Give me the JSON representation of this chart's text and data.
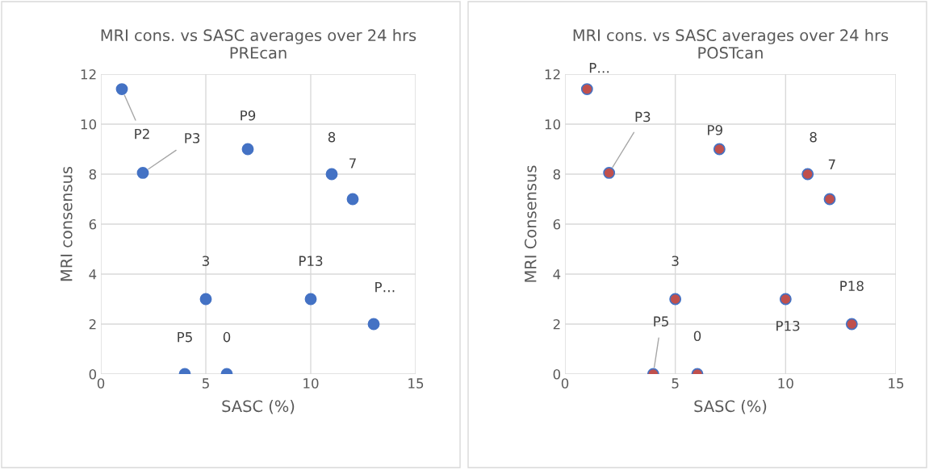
{
  "chart_data": [
    {
      "type": "scatter",
      "title": "MRI cons. vs SASC averages over 24 hrs\nPREcan",
      "xlabel": "SASC (%)",
      "ylabel": "MRI consensus",
      "x": [
        1,
        2,
        7,
        11,
        12,
        5,
        10,
        13,
        4,
        6
      ],
      "series": [
        {
          "color": "#4472c4",
          "values": [
            11.4,
            8.05,
            9,
            8,
            7,
            3,
            3,
            2,
            0,
            0
          ]
        }
      ],
      "annotations": [
        {
          "text": "P2",
          "x": 1,
          "y": 11.4
        },
        {
          "text": "P3",
          "x": 2,
          "y": 8.05
        },
        {
          "text": "P9",
          "x": 7,
          "y": 9
        },
        {
          "text": "8",
          "x": 11,
          "y": 8
        },
        {
          "text": "7",
          "x": 12,
          "y": 7
        },
        {
          "text": "3",
          "x": 5,
          "y": 3
        },
        {
          "text": "P13",
          "x": 10,
          "y": 3
        },
        {
          "text": "P…",
          "x": 13,
          "y": 2
        },
        {
          "text": "P5",
          "x": 4,
          "y": 0
        },
        {
          "text": "0",
          "x": 6,
          "y": 0
        }
      ],
      "xlim": [
        0,
        15
      ],
      "xticks": [
        0,
        5,
        10,
        15
      ],
      "ylim": [
        0,
        12
      ],
      "yticks": [
        0,
        2,
        4,
        6,
        8,
        10,
        12
      ],
      "grid": true,
      "marker": "circle",
      "legend": false
    },
    {
      "type": "scatter",
      "title": "MRI cons. vs SASC averages over 24 hrs\nPOSTcan",
      "xlabel": "SASC (%)",
      "ylabel": "MRI Consensus",
      "x": [
        1,
        2,
        7,
        11,
        12,
        5,
        10,
        13,
        4,
        6
      ],
      "series": [
        {
          "color": "#c0504d",
          "values": [
            11.4,
            8.05,
            9,
            8,
            7,
            3,
            3,
            2,
            0,
            0
          ]
        }
      ],
      "annotations": [
        {
          "text": "P…",
          "x": 1,
          "y": 11.4
        },
        {
          "text": "P3",
          "x": 2,
          "y": 8.05
        },
        {
          "text": "P9",
          "x": 7,
          "y": 9
        },
        {
          "text": "8",
          "x": 11,
          "y": 8
        },
        {
          "text": "7",
          "x": 12,
          "y": 7
        },
        {
          "text": "3",
          "x": 5,
          "y": 3
        },
        {
          "text": "P13",
          "x": 10,
          "y": 3
        },
        {
          "text": "P18",
          "x": 13,
          "y": 2
        },
        {
          "text": "P5",
          "x": 4,
          "y": 0
        },
        {
          "text": "0",
          "x": 6,
          "y": 0
        }
      ],
      "xlim": [
        0,
        15
      ],
      "xticks": [
        0,
        5,
        10,
        15
      ],
      "ylim": [
        0,
        12
      ],
      "yticks": [
        0,
        2,
        4,
        6,
        8,
        10,
        12
      ],
      "grid": true,
      "marker": "circle",
      "legend": false
    }
  ]
}
